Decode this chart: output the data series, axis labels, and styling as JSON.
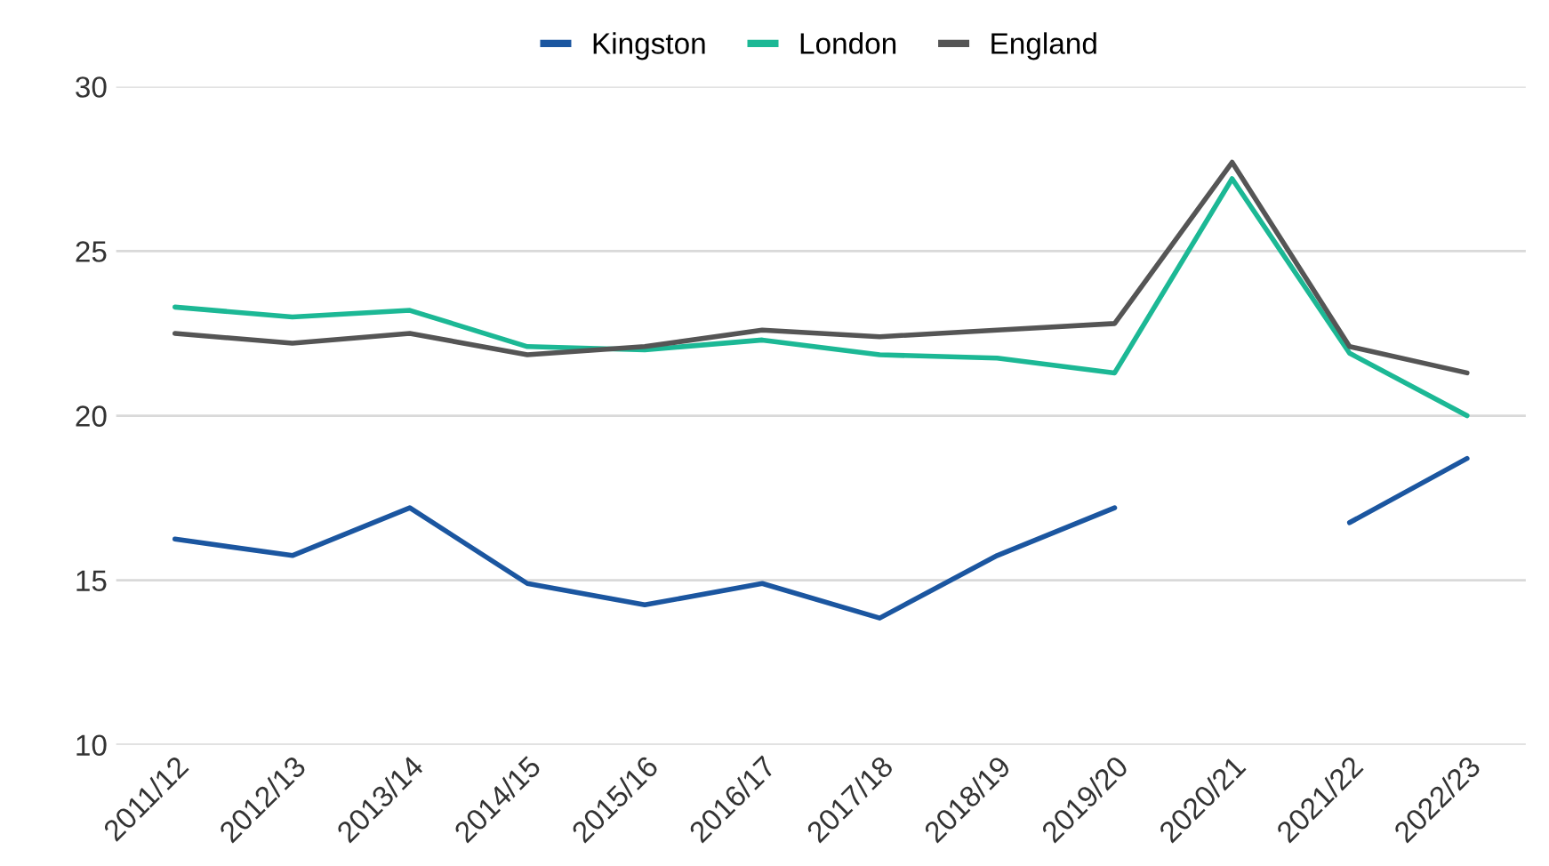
{
  "chart_data": {
    "type": "line",
    "categories": [
      "2011/12",
      "2012/13",
      "2013/14",
      "2014/15",
      "2015/16",
      "2016/17",
      "2017/18",
      "2018/19",
      "2019/20",
      "2020/21",
      "2021/22",
      "2022/23"
    ],
    "series": [
      {
        "name": "Kingston",
        "color": "#1b56a0",
        "values": [
          16.25,
          15.75,
          17.2,
          14.9,
          14.25,
          14.9,
          13.85,
          15.75,
          17.2,
          null,
          16.75,
          18.7
        ]
      },
      {
        "name": "London",
        "color": "#1cb895",
        "values": [
          23.3,
          23.0,
          23.2,
          22.1,
          22.0,
          22.3,
          21.85,
          21.75,
          21.3,
          27.2,
          21.9,
          20.0
        ]
      },
      {
        "name": "England",
        "color": "#555555",
        "values": [
          22.5,
          22.2,
          22.5,
          21.85,
          22.1,
          22.6,
          22.4,
          22.6,
          22.8,
          27.7,
          22.1,
          21.3
        ]
      }
    ],
    "ylim": [
      10,
      30
    ],
    "yticks": [
      10,
      15,
      20,
      25,
      30
    ],
    "grid": "y",
    "legend": "top",
    "line_style": "solid"
  }
}
